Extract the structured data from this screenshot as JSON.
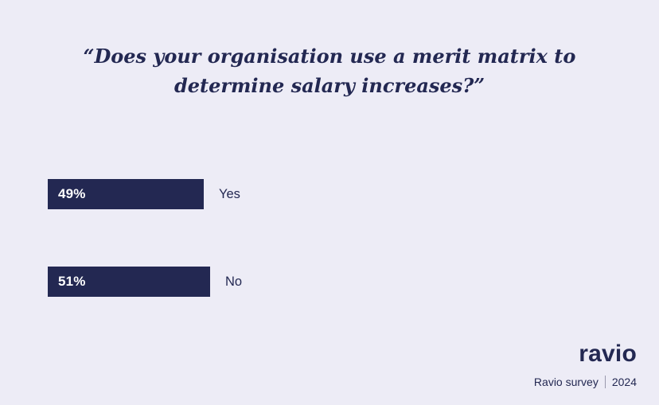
{
  "chart_data": {
    "type": "bar",
    "orientation": "horizontal",
    "title": "“Does your organisation use a merit matrix to determine salary increases?”",
    "categories": [
      "Yes",
      "No"
    ],
    "values": [
      49,
      51
    ],
    "value_labels": [
      "49%",
      "51%"
    ],
    "xlim": [
      0,
      100
    ],
    "legend": "none",
    "grid": "off",
    "bar_color": "#232852",
    "background_color": "#edecf6",
    "value_label_color": "#ffffff",
    "category_label_color": "#232852"
  },
  "footer": {
    "logo_text": "ravio",
    "source_text": "Ravio survey",
    "year_text": "2024"
  }
}
